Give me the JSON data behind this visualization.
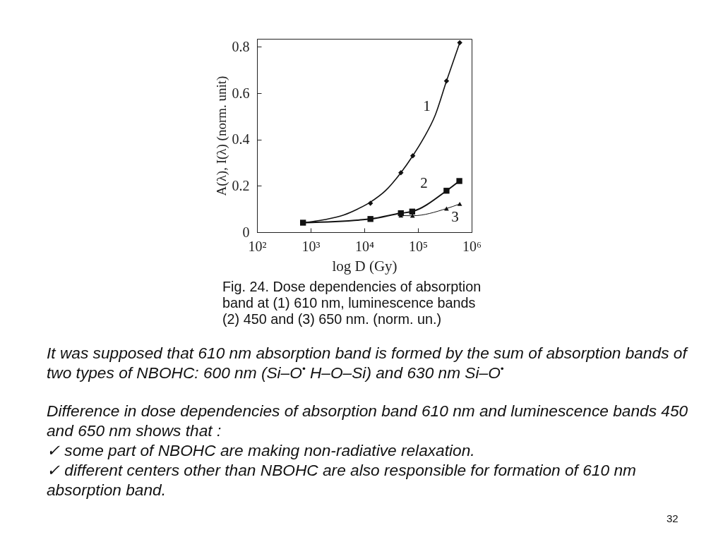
{
  "chart_data": {
    "type": "line",
    "xlabel": "log D (Gy)",
    "ylabel": "A(λ), I(λ) (norm. unit)",
    "log": "x",
    "xlim": [
      100,
      1000000
    ],
    "xticks": [
      {
        "value": 100,
        "label": "10²"
      },
      {
        "value": 1000,
        "label": "10³"
      },
      {
        "value": 10000,
        "label": "10⁴"
      },
      {
        "value": 100000,
        "label": "10⁵"
      },
      {
        "value": 1000000,
        "label": "10⁶"
      }
    ],
    "ylim": [
      0,
      0.835
    ],
    "yticks": [
      0,
      0.2,
      0.4,
      0.6,
      0.8
    ],
    "legend": false,
    "line_style": "solid",
    "series": [
      {
        "type": "line",
        "color": "#111111",
        "marker": "none",
        "x": [
          720,
          1800,
          4100,
          7500,
          13000,
          25000,
          48000,
          80000,
          126000,
          210000,
          340000,
          600000
        ],
        "values": [
          0.041,
          0.054,
          0.074,
          0.1,
          0.13,
          0.18,
          0.257,
          0.33,
          0.404,
          0.506,
          0.653,
          0.818
        ]
      },
      {
        "type": "scatter",
        "name": "1",
        "color": "#111111",
        "marker": "diamond",
        "x": [
          13000,
          48000,
          80000,
          340000,
          600000
        ],
        "values": [
          0.125,
          0.257,
          0.33,
          0.653,
          0.818
        ]
      },
      {
        "name": "2",
        "color": "#111111",
        "marker": "square",
        "x": [
          720,
          13000,
          48000,
          78000,
          340000,
          590000
        ],
        "values": [
          0.041,
          0.057,
          0.082,
          0.089,
          0.179,
          0.221
        ]
      },
      {
        "name": "3",
        "color": "#111111",
        "marker": "triangle",
        "x": [
          48000,
          79000,
          340000,
          600000
        ],
        "values": [
          0.072,
          0.071,
          0.102,
          0.122
        ]
      }
    ],
    "annotations": [
      "Fig. 24. Dose dependencies of absorption band at (1) 610 nm, luminescence bands (2) 450 and (3) 650 nm. (norm. un.)",
      "It was supposed that 610 nm absorption band is formed by the sum of absorption bands of two types of NBOHC: 600 nm (Si–O$^{•}$ H–O–Si) and 630 nm Si–O$^{•}$",
      "Difference in dose dependencies of absorption band 610 nm and luminescence bands 450 and 650 nm shows that :",
      "✓ some part of NBOHC are making non-radiative relaxation.",
      "✓ different centers other than NBOHC are also responsible for formation of 610 nm absorption band.",
      "32"
    ]
  }
}
